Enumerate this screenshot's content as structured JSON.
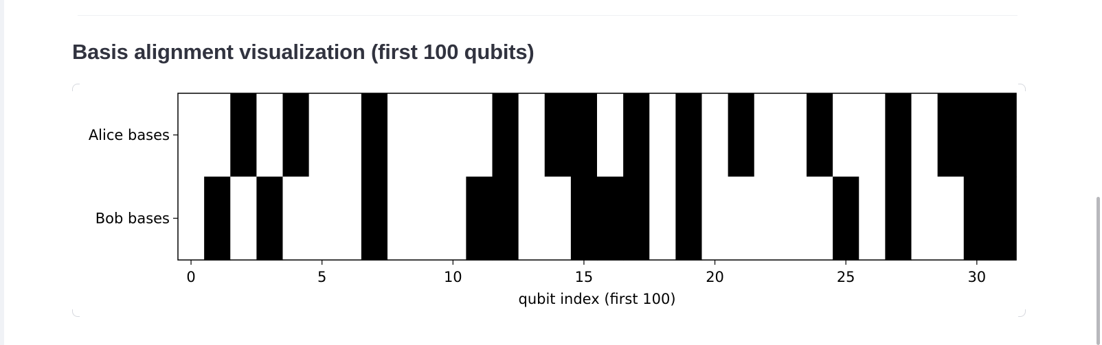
{
  "page": {
    "title": "Basis alignment visualization (first 100 qubits)"
  },
  "chart_data": {
    "type": "heatmap",
    "title": "",
    "xlabel": "qubit index (first 100)",
    "ylabel": "",
    "row_labels": [
      "Alice bases",
      "Bob bases"
    ],
    "x_ticks": [
      0,
      5,
      10,
      15,
      20,
      25,
      30
    ],
    "xlim": [
      -0.5,
      31.5
    ],
    "colors": {
      "0": "#ffffff",
      "1": "#000000",
      "frame": "#000000"
    },
    "values": [
      [
        0,
        0,
        1,
        0,
        1,
        0,
        0,
        1,
        0,
        0,
        0,
        0,
        1,
        0,
        1,
        1,
        0,
        1,
        0,
        1,
        0,
        1,
        0,
        0,
        1,
        0,
        0,
        1,
        0,
        1,
        1,
        1
      ],
      [
        0,
        1,
        0,
        1,
        0,
        0,
        0,
        1,
        0,
        0,
        0,
        1,
        1,
        0,
        0,
        1,
        1,
        1,
        0,
        1,
        0,
        0,
        0,
        0,
        0,
        1,
        0,
        1,
        0,
        0,
        1,
        1
      ]
    ]
  }
}
